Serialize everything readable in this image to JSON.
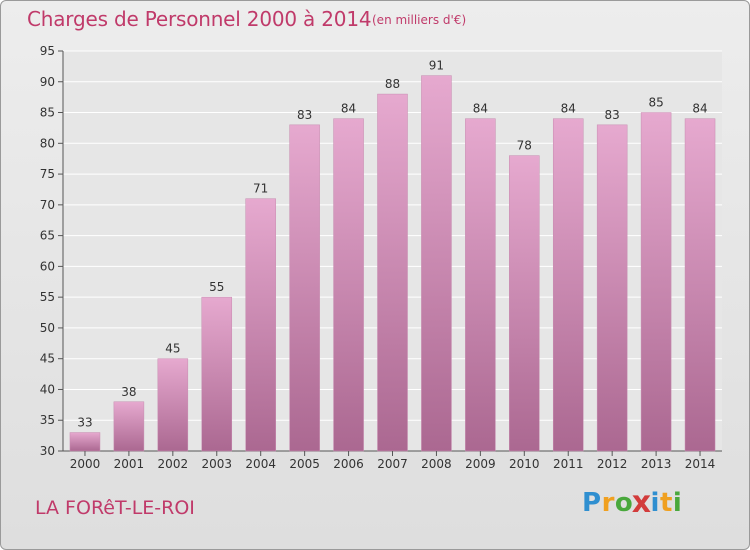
{
  "title": "Charges de Personnel 2000 à 2014",
  "unit": "(en milliers d'€)",
  "commune": "LA FORêT-LE-ROI",
  "logo": {
    "text": "Proxiti",
    "letters": [
      {
        "char": "P",
        "color": "#2f8fd0"
      },
      {
        "char": "r",
        "color": "#f0a020"
      },
      {
        "char": "o",
        "color": "#49a83c"
      },
      {
        "char": "x",
        "color": "#d23b3b"
      },
      {
        "char": "i",
        "color": "#2f8fd0"
      },
      {
        "char": "t",
        "color": "#f0a020"
      },
      {
        "char": "i",
        "color": "#49a83c"
      }
    ]
  },
  "colors": {
    "bar_top": "#e6a9cf",
    "bar_bottom": "#ab6891",
    "title": "#c03a6a"
  },
  "chart_data": {
    "type": "bar",
    "categories": [
      "2000",
      "2001",
      "2002",
      "2003",
      "2004",
      "2005",
      "2006",
      "2007",
      "2008",
      "2009",
      "2010",
      "2011",
      "2012",
      "2013",
      "2014"
    ],
    "values": [
      33,
      38,
      45,
      55,
      71,
      83,
      84,
      88,
      91,
      84,
      78,
      84,
      83,
      85,
      84
    ],
    "ylim": [
      30,
      95
    ],
    "yticks": [
      30,
      35,
      40,
      45,
      50,
      55,
      60,
      65,
      70,
      75,
      80,
      85,
      90,
      95
    ],
    "grid": true,
    "title": "Charges de Personnel 2000 à 2014",
    "ylabel": "(en milliers d'€)"
  }
}
